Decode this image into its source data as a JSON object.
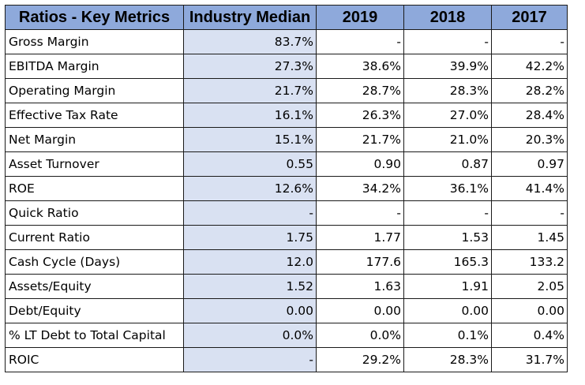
{
  "header": {
    "metric": "Ratios - Key Metrics",
    "median": "Industry Median",
    "y2019": "2019",
    "y2018": "2018",
    "y2017": "2017"
  },
  "rows": [
    {
      "label": "Gross Margin",
      "median": "83.7%",
      "y2019": "-",
      "y2018": "-",
      "y2017": "-"
    },
    {
      "label": "EBITDA Margin",
      "median": "27.3%",
      "y2019": "38.6%",
      "y2018": "39.9%",
      "y2017": "42.2%"
    },
    {
      "label": "Operating Margin",
      "median": "21.7%",
      "y2019": "28.7%",
      "y2018": "28.3%",
      "y2017": "28.2%"
    },
    {
      "label": "Effective Tax Rate",
      "median": "16.1%",
      "y2019": "26.3%",
      "y2018": "27.0%",
      "y2017": "28.4%"
    },
    {
      "label": "Net Margin",
      "median": "15.1%",
      "y2019": "21.7%",
      "y2018": "21.0%",
      "y2017": "20.3%"
    },
    {
      "label": "Asset Turnover",
      "median": "0.55",
      "y2019": "0.90",
      "y2018": "0.87",
      "y2017": "0.97"
    },
    {
      "label": "ROE",
      "median": "12.6%",
      "y2019": "34.2%",
      "y2018": "36.1%",
      "y2017": "41.4%"
    },
    {
      "label": "Quick Ratio",
      "median": "-",
      "y2019": "-",
      "y2018": "-",
      "y2017": "-"
    },
    {
      "label": "Current Ratio",
      "median": "1.75",
      "y2019": "1.77",
      "y2018": "1.53",
      "y2017": "1.45"
    },
    {
      "label": "Cash Cycle (Days)",
      "median": "12.0",
      "y2019": "177.6",
      "y2018": "165.3",
      "y2017": "133.2"
    },
    {
      "label": "Assets/Equity",
      "median": "1.52",
      "y2019": "1.63",
      "y2018": "1.91",
      "y2017": "2.05"
    },
    {
      "label": "Debt/Equity",
      "median": "0.00",
      "y2019": "0.00",
      "y2018": "0.00",
      "y2017": "0.00"
    },
    {
      "label": "% LT Debt to Total Capital",
      "median": "0.0%",
      "y2019": "0.0%",
      "y2018": "0.1%",
      "y2017": "0.4%"
    },
    {
      "label": "ROIC",
      "median": "-",
      "y2019": "29.2%",
      "y2018": "28.3%",
      "y2017": "31.7%"
    }
  ],
  "colors": {
    "header_bg": "#8ea9db",
    "median_bg": "#d9e1f2",
    "grid": "#1a1a1a"
  }
}
